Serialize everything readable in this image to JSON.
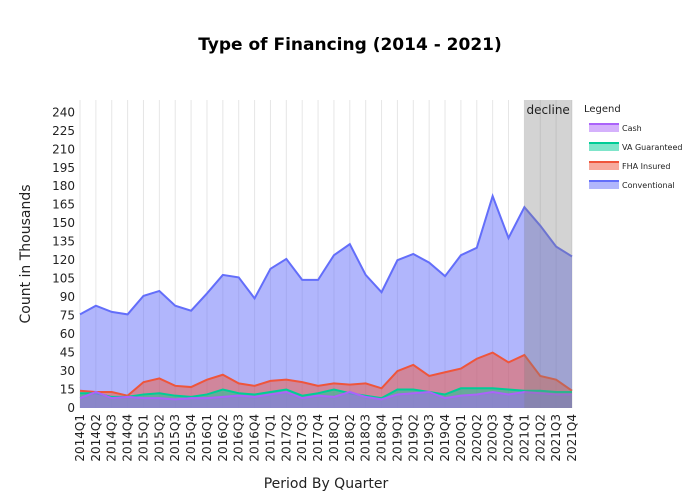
{
  "chart_data": {
    "type": "area",
    "title": "Type of Financing (2014 - 2021)",
    "xlabel": "Period By Quarter",
    "ylabel": "Count in Thousands",
    "ylim": [
      0,
      250
    ],
    "yticks": [
      0,
      15,
      30,
      45,
      60,
      75,
      90,
      105,
      120,
      135,
      150,
      165,
      180,
      195,
      210,
      225,
      240
    ],
    "categories": [
      "2014Q1",
      "2014Q2",
      "2014Q3",
      "2014Q4",
      "2015Q1",
      "2015Q2",
      "2015Q3",
      "2015Q4",
      "2016Q1",
      "2016Q2",
      "2016Q3",
      "2016Q4",
      "2017Q1",
      "2017Q2",
      "2017Q3",
      "2017Q4",
      "2018Q1",
      "2018Q2",
      "2018Q3",
      "2018Q4",
      "2019Q1",
      "2019Q2",
      "2019Q3",
      "2019Q4",
      "2020Q1",
      "2020Q2",
      "2020Q3",
      "2020Q4",
      "2021Q1",
      "2021Q2",
      "2021Q3",
      "2021Q4"
    ],
    "series": [
      {
        "name": "Conventional",
        "color": "#636efa",
        "values": [
          76,
          83,
          78,
          76,
          91,
          95,
          83,
          79,
          93,
          108,
          106,
          89,
          113,
          121,
          104,
          104,
          124,
          133,
          108,
          94,
          120,
          125,
          118,
          107,
          124,
          130,
          172,
          138,
          163,
          148,
          131,
          123
        ]
      },
      {
        "name": "FHA Insured",
        "color": "#ef553b",
        "values": [
          14,
          13,
          13,
          10,
          21,
          24,
          18,
          17,
          23,
          27,
          20,
          18,
          22,
          23,
          21,
          18,
          20,
          19,
          20,
          16,
          30,
          35,
          26,
          29,
          32,
          40,
          45,
          37,
          43,
          26,
          23,
          14
        ]
      },
      {
        "name": "VA Guaranteed",
        "color": "#00cc96",
        "values": [
          12,
          12,
          9,
          9,
          11,
          12,
          10,
          9,
          11,
          15,
          12,
          11,
          13,
          15,
          10,
          12,
          15,
          12,
          10,
          8,
          15,
          15,
          13,
          11,
          16,
          16,
          16,
          15,
          14,
          14,
          13,
          13
        ]
      },
      {
        "name": "Cash",
        "color": "#ab63fa",
        "values": [
          8,
          13,
          8,
          9,
          8,
          8,
          7,
          8,
          8,
          9,
          10,
          9,
          11,
          13,
          8,
          10,
          9,
          13,
          9,
          7,
          11,
          12,
          13,
          8,
          10,
          11,
          13,
          11,
          13,
          12,
          11,
          11
        ]
      }
    ],
    "legend": {
      "title": "Legend",
      "placement": "top-right",
      "order": [
        "Cash",
        "VA Guaranteed",
        "FHA Insured",
        "Conventional"
      ]
    },
    "shaded_region": {
      "from": "2021Q1",
      "to": "2021Q4",
      "label": "decline"
    },
    "grid": {
      "x": true,
      "y": false
    }
  }
}
